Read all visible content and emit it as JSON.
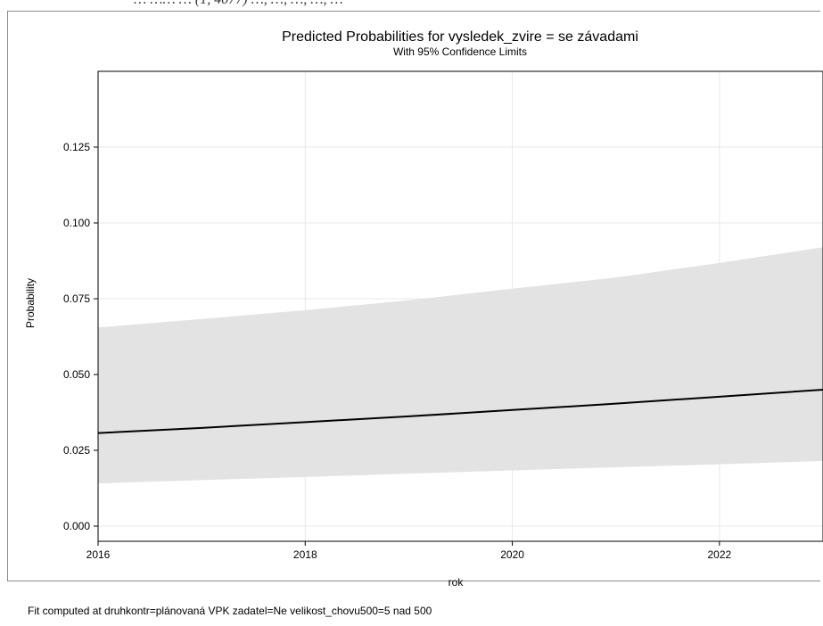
{
  "clipped_header": "… …… … (1, 4077) …, …, …, …, …",
  "chart_data": {
    "type": "line",
    "title": "Predicted Probabilities for vysledek_zvire = se závadami",
    "subtitle": "With 95% Confidence Limits",
    "xlabel": "rok",
    "ylabel": "Probability",
    "xlim": [
      2016,
      2023
    ],
    "ylim": [
      -0.005,
      0.15
    ],
    "xticks": [
      2016,
      2018,
      2020,
      2022
    ],
    "yticks": [
      "0.000",
      "0.025",
      "0.050",
      "0.075",
      "0.100",
      "0.125"
    ],
    "grid": true,
    "legend": "none",
    "series": [
      {
        "x": [
          2016,
          2017,
          2018,
          2019,
          2020,
          2021,
          2022,
          2023
        ],
        "values": [
          0.0307,
          0.0324,
          0.0343,
          0.0362,
          0.0383,
          0.0404,
          0.0427,
          0.045
        ],
        "lower": [
          0.0141,
          0.0152,
          0.0162,
          0.0173,
          0.0184,
          0.0194,
          0.0204,
          0.0215
        ],
        "upper": [
          0.0655,
          0.0683,
          0.0712,
          0.0745,
          0.0783,
          0.082,
          0.0868,
          0.092
        ]
      }
    ],
    "colors": {
      "band": "#e3e3e3",
      "line": "#000000",
      "grid": "#e8e8e8"
    }
  },
  "footnote": "Fit computed at druhkontr=plánovaná VPK zadatel=Ne velikost_chovu500=5 nad 500"
}
